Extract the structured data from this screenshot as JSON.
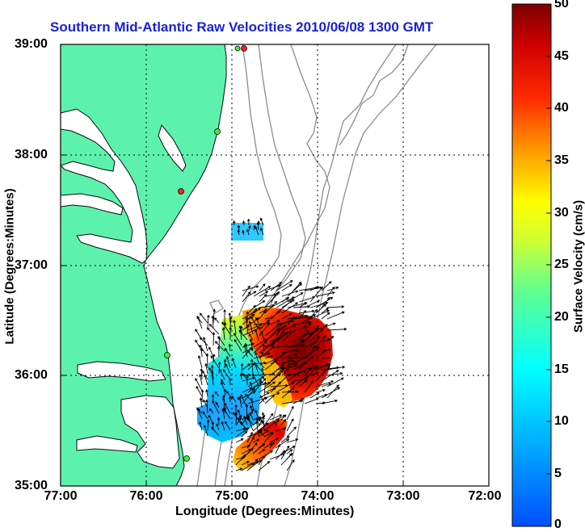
{
  "title": "Southern Mid-Atlantic Raw Velocities 2010/06/08 1300 GMT",
  "x_axis": {
    "label": "Longitude (Degrees:Minutes)",
    "ticks": [
      "77:00",
      "76:00",
      "75:00",
      "74:00",
      "73:00",
      "72:00"
    ]
  },
  "y_axis": {
    "label": "Latitude (Degrees:Minutes)",
    "ticks": [
      "39:00",
      "38:00",
      "37:00",
      "36:00",
      "35:00"
    ]
  },
  "colorbar": {
    "label": "Surface Velocity (cm/s)",
    "ticks": [
      "50",
      "45",
      "40",
      "35",
      "30",
      "25",
      "20",
      "15",
      "10",
      "5",
      "0"
    ],
    "range": [
      0,
      50
    ],
    "colormap": "jet"
  },
  "colors": {
    "land": "#5cf2ad",
    "title": "#1a22d6",
    "bathymetry": "#8c8c8c",
    "grid": "#000000"
  },
  "map": {
    "lon_range": [
      "77:00 W",
      "72:00 W"
    ],
    "lat_range": [
      "35:00 N",
      "39:00 N"
    ],
    "grid": "dotted",
    "station_markers": [
      "green",
      "red"
    ]
  }
}
